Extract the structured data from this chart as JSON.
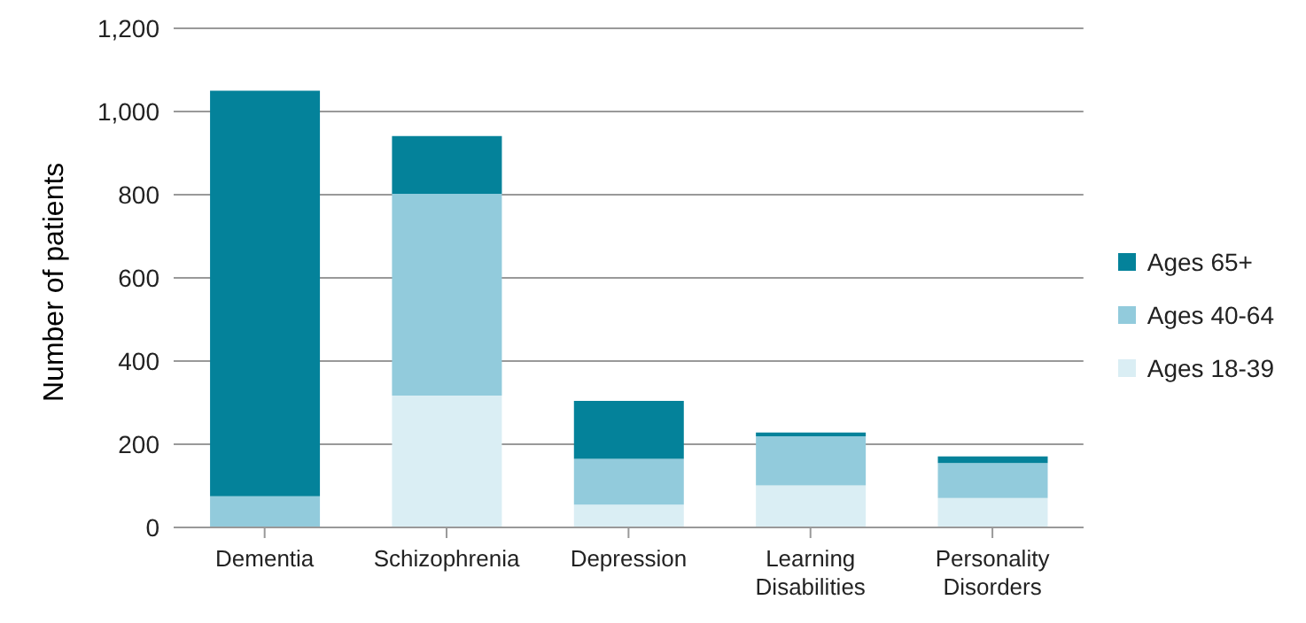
{
  "chart_data": {
    "type": "bar",
    "stacked": true,
    "ylabel": "Number of patients",
    "categories": [
      "Dementia",
      "Schizophrenia",
      "Depression",
      "Learning Disabilities",
      "Personality Disorders"
    ],
    "series": [
      {
        "name": "Ages 18-39",
        "color": "#daeef4",
        "values": [
          0,
          317,
          55,
          101,
          71
        ]
      },
      {
        "name": "Ages 40-64",
        "color": "#92cbdc",
        "values": [
          75,
          485,
          110,
          118,
          84
        ]
      },
      {
        "name": "Ages 65+",
        "color": "#04829a",
        "values": [
          975,
          139,
          139,
          9,
          16
        ]
      }
    ],
    "ylim": [
      0,
      1200
    ],
    "yticks": [
      {
        "value": 0,
        "label": "0"
      },
      {
        "value": 200,
        "label": "200"
      },
      {
        "value": 400,
        "label": "400"
      },
      {
        "value": 600,
        "label": "600"
      },
      {
        "value": 800,
        "label": "800"
      },
      {
        "value": 1000,
        "label": "1,000"
      },
      {
        "value": 1200,
        "label": "1,200"
      }
    ],
    "grid": "y",
    "legend": "right"
  }
}
